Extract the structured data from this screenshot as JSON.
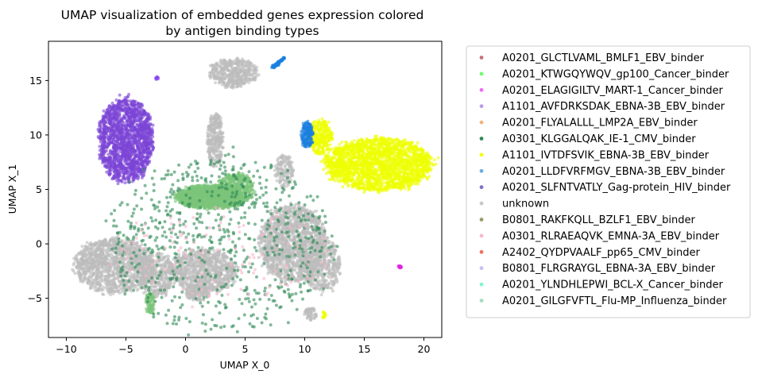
{
  "chart_data": {
    "type": "scatter",
    "title": "UMAP visualization of embedded genes expression colored",
    "subtitle": "by antigen binding types",
    "xlabel": "UMAP X_0",
    "ylabel": "UMAP X_1",
    "xlim": [
      -11.5,
      21.5
    ],
    "ylim": [
      -8.6,
      18.6
    ],
    "xticks": [
      -10,
      -5,
      0,
      5,
      10,
      15,
      20
    ],
    "yticks": [
      -5,
      0,
      5,
      10,
      15
    ],
    "grid": false,
    "legend_position": "outside-right",
    "series": [
      {
        "name": "A0201_GLCTLVAML_BMLF1_EBV_binder",
        "color": "#c9707a"
      },
      {
        "name": "A0201_KTWGQYWQV_gp100_Cancer_binder",
        "color": "#6dfc6d"
      },
      {
        "name": "A0201_ELAGIGILTV_MART-1_Cancer_binder",
        "color": "#f06cf0"
      },
      {
        "name": "A1101_AVFDRKSDAK_EBNA-3B_EBV_binder",
        "color": "#b79ce6"
      },
      {
        "name": "A0201_FLYALALLL_LMP2A_EBV_binder",
        "color": "#f2b47a"
      },
      {
        "name": "A0301_KLGGALQAK_IE-1_CMV_binder",
        "color": "#2e8b57"
      },
      {
        "name": "A1101_IVTDFSVIK_EBNA-3B_EBV_binder",
        "color": "#f0ff00"
      },
      {
        "name": "A0201_LLDFVRFMGV_EBNA-3B_EBV_binder",
        "color": "#68b0e0"
      },
      {
        "name": "A0201_SLFNTVATLY_Gag-protein_HIV_binder",
        "color": "#7a72cc"
      },
      {
        "name": "unknown",
        "color": "#c8c8c8"
      },
      {
        "name": "B0801_RAKFKQLL_BZLF1_EBV_binder",
        "color": "#9a9a6a"
      },
      {
        "name": "A0301_RLRAEAQVK_EMNA-3A_EBV_binder",
        "color": "#f7b8cc"
      },
      {
        "name": "A2402_QYDPVAALF_pp65_CMV_binder",
        "color": "#f07060"
      },
      {
        "name": "B0801_FLRGRAYGL_EBNA-3A_EBV_binder",
        "color": "#c8c0f0"
      },
      {
        "name": "A0201_YLNDHLEPWI_BCL-X_Cancer_binder",
        "color": "#7ff5d0"
      },
      {
        "name": "A0201_GILGFVFTL_Flu-MP_Influenza_binder",
        "color": "#a8dcc0"
      }
    ],
    "clusters": [
      {
        "series": "A0201_SLFNTVATLY_Gag-protein_HIV_binder",
        "color": "#7b45d6",
        "cx": -5.0,
        "cy": 9.5,
        "rx": 2.3,
        "ry": 3.8,
        "n": 1600
      },
      {
        "series": "A1101_IVTDFSVIK_EBNA-3B_EBV_binder",
        "color": "#eeff00",
        "cx": 16.2,
        "cy": 7.3,
        "rx": 4.5,
        "ry": 2.4,
        "n": 2000
      },
      {
        "series": "A1101_IVTDFSVIK_EBNA-3B_EBV_binder",
        "color": "#eeff00",
        "cx": 11.3,
        "cy": 9.8,
        "rx": 1.0,
        "ry": 1.6,
        "n": 300
      },
      {
        "series": "A0201_LLDFVRFMGV_EBNA-3B_EBV_binder",
        "color": "#1a7ee0",
        "cx": 10.2,
        "cy": 10.0,
        "rx": 0.5,
        "ry": 1.2,
        "n": 160
      },
      {
        "series": "A0201_KTWGQYWQV_gp100_Cancer_binder",
        "color": "#7cc47a",
        "cx": 2.0,
        "cy": 4.3,
        "rx": 2.8,
        "ry": 1.1,
        "n": 1300
      },
      {
        "series": "A0201_KTWGQYWQV_gp100_Cancer_binder",
        "color": "#7cc47a",
        "cx": 4.2,
        "cy": 5.0,
        "rx": 1.5,
        "ry": 1.5,
        "n": 500
      },
      {
        "series": "unknown",
        "color": "#bdbdbd",
        "cx": -6.0,
        "cy": -2.0,
        "rx": 3.3,
        "ry": 2.5,
        "n": 1300
      },
      {
        "series": "unknown",
        "color": "#bdbdbd",
        "cx": -2.5,
        "cy": -2.8,
        "rx": 1.5,
        "ry": 2.0,
        "n": 400
      },
      {
        "series": "unknown",
        "color": "#bdbdbd",
        "cx": 1.5,
        "cy": -2.5,
        "rx": 2.8,
        "ry": 2.0,
        "n": 900
      },
      {
        "series": "unknown",
        "color": "#bdbdbd",
        "cx": 9.0,
        "cy": 0.0,
        "rx": 2.8,
        "ry": 3.5,
        "n": 1500
      },
      {
        "series": "unknown",
        "color": "#bdbdbd",
        "cx": 11.5,
        "cy": -2.0,
        "rx": 1.5,
        "ry": 2.5,
        "n": 400
      },
      {
        "series": "unknown",
        "color": "#bdbdbd",
        "cx": 2.5,
        "cy": 9.5,
        "rx": 0.7,
        "ry": 2.5,
        "n": 300
      },
      {
        "series": "unknown",
        "color": "#bdbdbd",
        "cx": 4.0,
        "cy": 15.7,
        "rx": 2.0,
        "ry": 1.3,
        "n": 450
      },
      {
        "series": "unknown",
        "color": "#bdbdbd",
        "cx": 8.3,
        "cy": 6.7,
        "rx": 0.8,
        "ry": 1.5,
        "n": 150
      },
      {
        "series": "unknown",
        "color": "#bdbdbd",
        "cx": 10.5,
        "cy": -6.4,
        "rx": 0.5,
        "ry": 0.6,
        "n": 60
      },
      {
        "series": "unknown",
        "color": "#bdbdbd",
        "cx": 1.0,
        "cy": -4.5,
        "rx": 1.0,
        "ry": 0.8,
        "n": 150
      },
      {
        "series": "A0201_KTWGQYWQV_gp100_Cancer_binder",
        "color": "#7cc47a",
        "cx": -3.0,
        "cy": -5.5,
        "rx": 0.4,
        "ry": 1.0,
        "n": 90
      },
      {
        "series": "A0201_SLFNTVATLY_Gag-protein_HIV_binder",
        "color": "#8844ee",
        "cx": -2.4,
        "cy": 15.2,
        "rx": 0.12,
        "ry": 0.15,
        "n": 10
      },
      {
        "series": "A0201_ELAGIGILTV_MART-1_Cancer_binder",
        "color": "#e020e0",
        "cx": 18.0,
        "cy": -2.1,
        "rx": 0.15,
        "ry": 0.12,
        "n": 12
      },
      {
        "series": "A1101_IVTDFSVIK_EBNA-3B_EBV_binder",
        "color": "#eeff00",
        "cx": 11.6,
        "cy": -6.5,
        "rx": 0.15,
        "ry": 0.3,
        "n": 14
      },
      {
        "series": "A0301_KLGGALQAK_IE-1_CMV_binder",
        "color": "#2e8b57",
        "cx": 3.0,
        "cy": 0.0,
        "rx": 9.5,
        "ry": 8.0,
        "n": 700
      },
      {
        "series": "A0301_RLRAEAQVK_EMNA-3A_EBV_binder",
        "color": "#f7b8cc",
        "cx": 3.0,
        "cy": -1.0,
        "rx": 9.0,
        "ry": 4.5,
        "n": 120
      }
    ],
    "streak": {
      "series": "A0201_LLDFVRFMGV_EBNA-3B_EBV_binder",
      "color": "#1a7ee0",
      "x0": 7.3,
      "y0": 16.2,
      "x1": 8.3,
      "y1": 17.1,
      "n": 50
    }
  }
}
